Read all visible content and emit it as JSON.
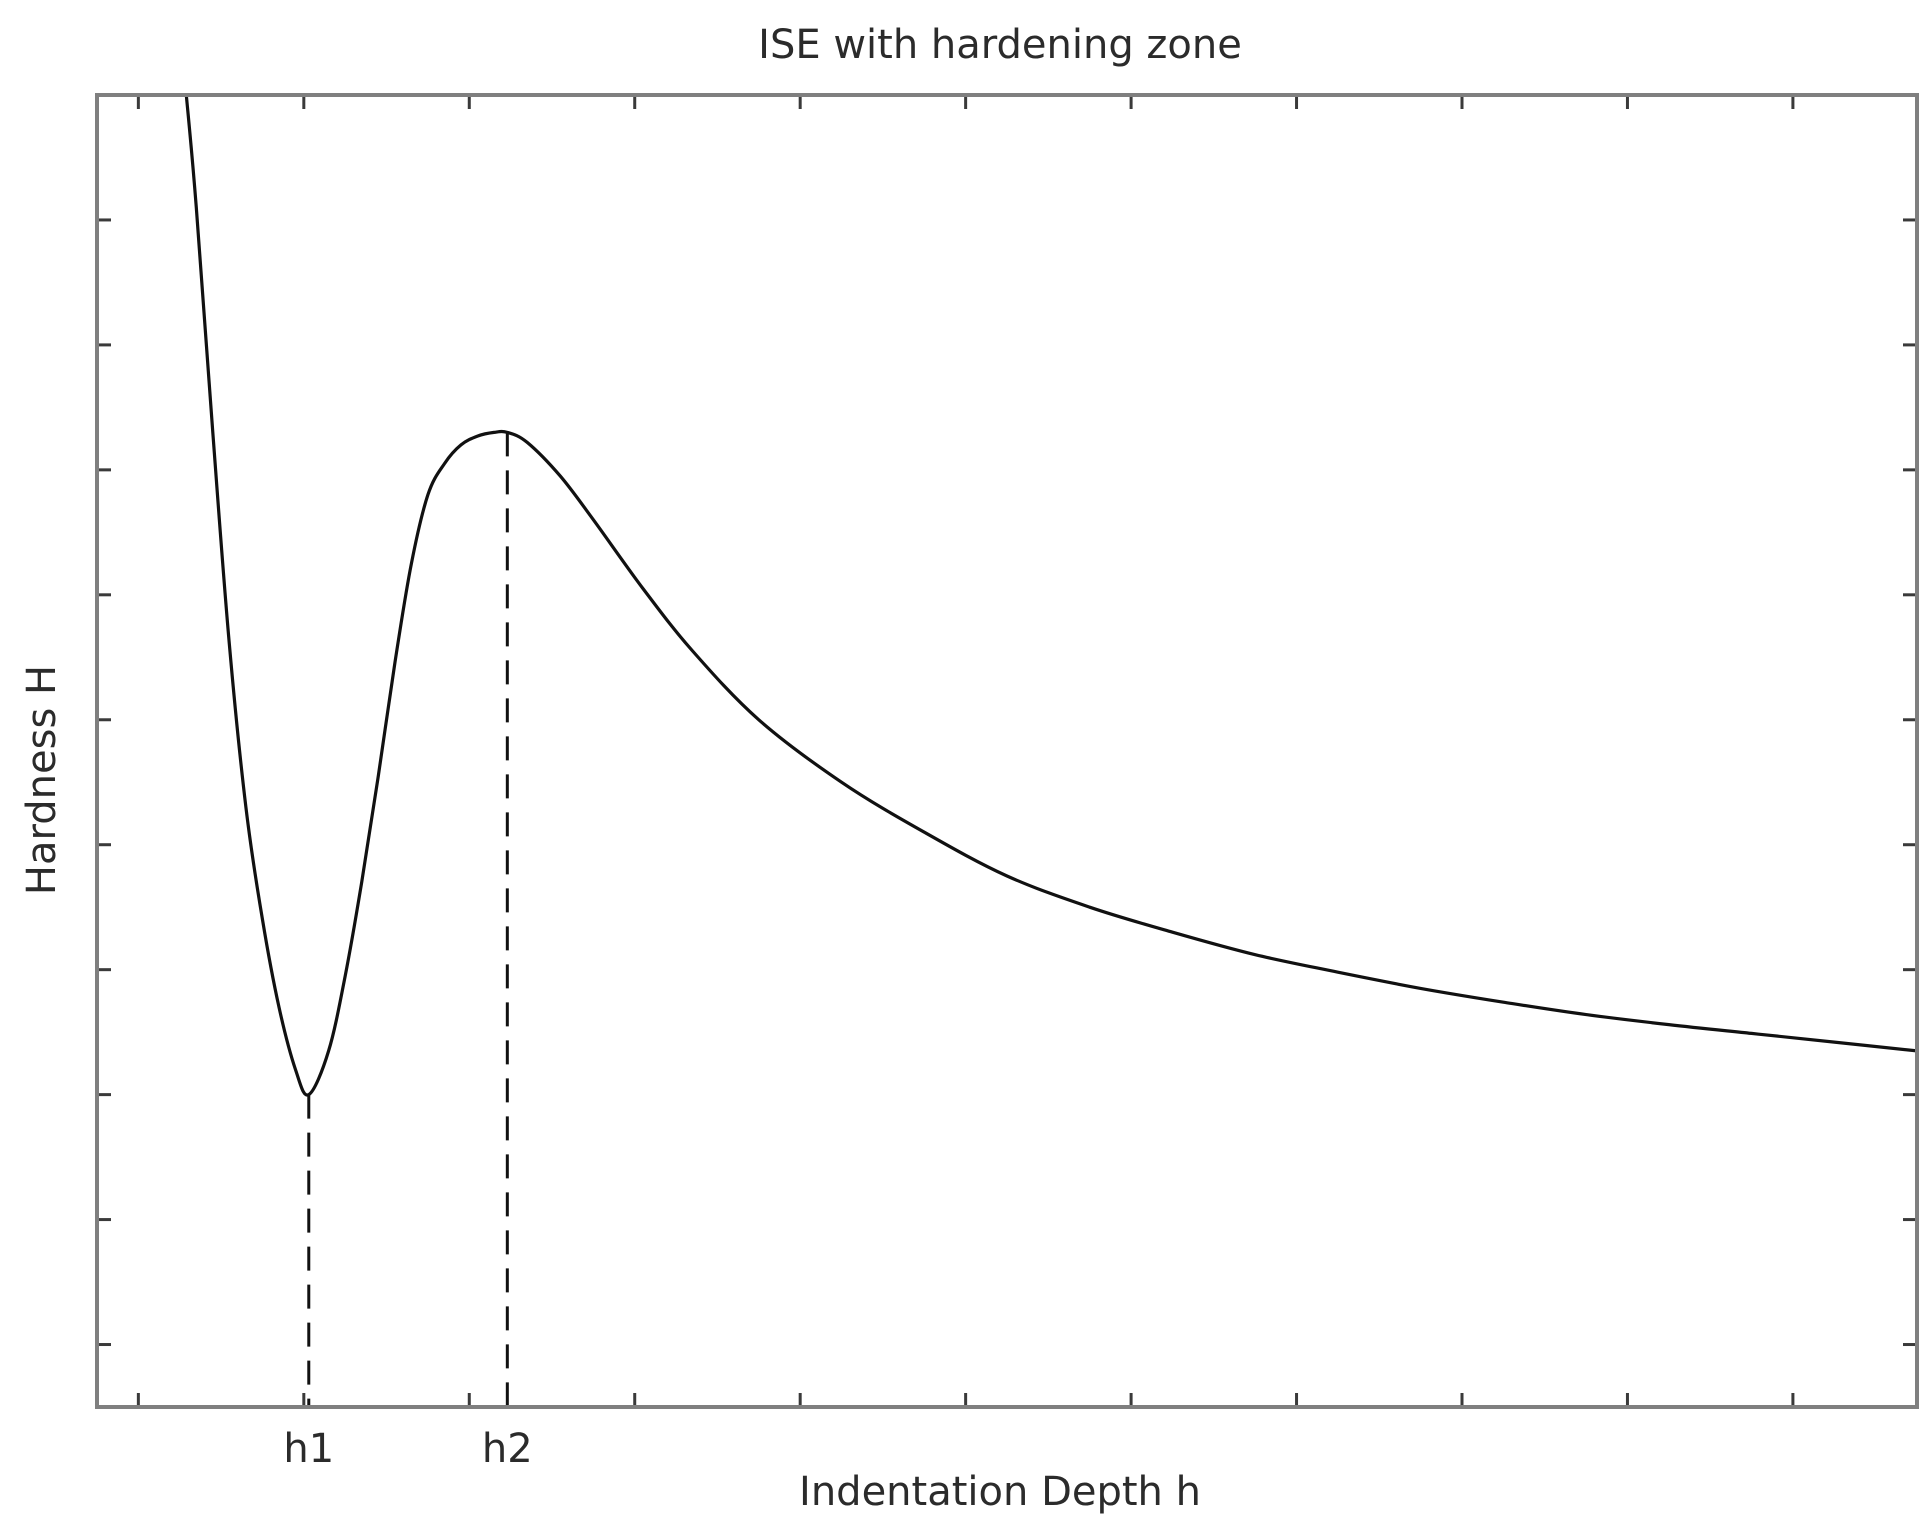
{
  "chart_data": {
    "type": "line",
    "title": "ISE with hardening zone",
    "xlabel": "Indentation Depth h",
    "ylabel": "Hardness H",
    "xlim": [
      0,
      11
    ],
    "ylim": [
      0,
      10.5
    ],
    "x_tick_values": [
      0.25,
      1.25,
      2.25,
      3.25,
      4.25,
      5.25,
      6.25,
      7.25,
      8.25,
      9.25,
      10.25
    ],
    "y_tick_values": [
      0.5,
      1.5,
      2.5,
      3.5,
      4.5,
      5.5,
      6.5,
      7.5,
      8.5,
      9.5,
      10.5
    ],
    "x_tick_labels": [
      {
        "label": "h1",
        "x": 1.28
      },
      {
        "label": "h2",
        "x": 2.48
      }
    ],
    "reference_lines": [
      {
        "x": 1.28,
        "y": 2.5,
        "style": "dashed"
      },
      {
        "x": 2.48,
        "y": 7.8,
        "style": "dashed"
      }
    ],
    "grid": false,
    "series": [
      {
        "color": "#111111",
        "x": [
          0.54,
          0.6,
          0.7,
          0.8,
          0.9,
          1.0,
          1.1,
          1.2,
          1.28,
          1.4,
          1.5,
          1.6,
          1.7,
          1.8,
          1.9,
          2.0,
          2.1,
          2.2,
          2.3,
          2.4,
          2.48,
          2.6,
          2.8,
          3.0,
          3.3,
          3.6,
          4.0,
          4.5,
          5.0,
          5.5,
          6.0,
          6.5,
          7.0,
          7.5,
          8.0,
          8.5,
          9.0,
          9.5,
          10.0,
          10.5,
          11.0
        ],
        "y": [
          10.5,
          9.6,
          7.8,
          6.1,
          4.8,
          3.9,
          3.2,
          2.7,
          2.5,
          2.85,
          3.45,
          4.2,
          5.05,
          5.95,
          6.75,
          7.3,
          7.55,
          7.7,
          7.77,
          7.8,
          7.8,
          7.72,
          7.45,
          7.1,
          6.55,
          6.05,
          5.5,
          5.0,
          4.6,
          4.25,
          4.0,
          3.8,
          3.62,
          3.48,
          3.35,
          3.24,
          3.14,
          3.06,
          2.99,
          2.92,
          2.85
        ]
      }
    ]
  }
}
